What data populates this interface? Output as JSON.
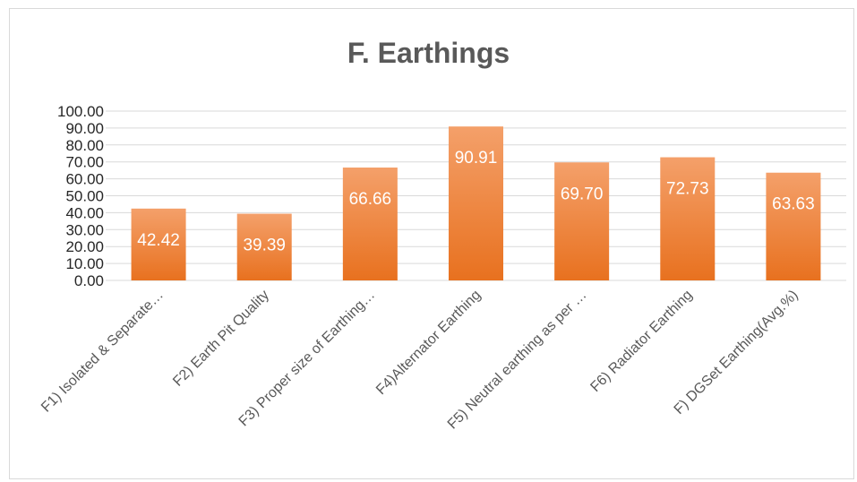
{
  "chart_data": {
    "type": "bar",
    "title": "F. Earthings",
    "categories": [
      "F1) Isolated & Separate…",
      "F2) Earth Pit Quality",
      "F3) Proper size of Earthing…",
      "F4)Alternator Earthing",
      "F5) Neutral earthing as per …",
      "F6) Radiator Earthing",
      "F) DGSet Earthing(Avg.%)"
    ],
    "values": [
      42.42,
      39.39,
      66.66,
      90.91,
      69.7,
      72.73,
      63.63
    ],
    "data_labels": [
      "42.42",
      "39.39",
      "66.66",
      "90.91",
      "69.70",
      "72.73",
      "63.63"
    ],
    "y_ticks": [
      "0.00",
      "10.00",
      "20.00",
      "30.00",
      "40.00",
      "50.00",
      "60.00",
      "70.00",
      "80.00",
      "90.00",
      "100.00"
    ],
    "ylim": [
      0,
      100
    ],
    "grid": true,
    "legend": "none",
    "bar_color": "#ed7d31"
  }
}
